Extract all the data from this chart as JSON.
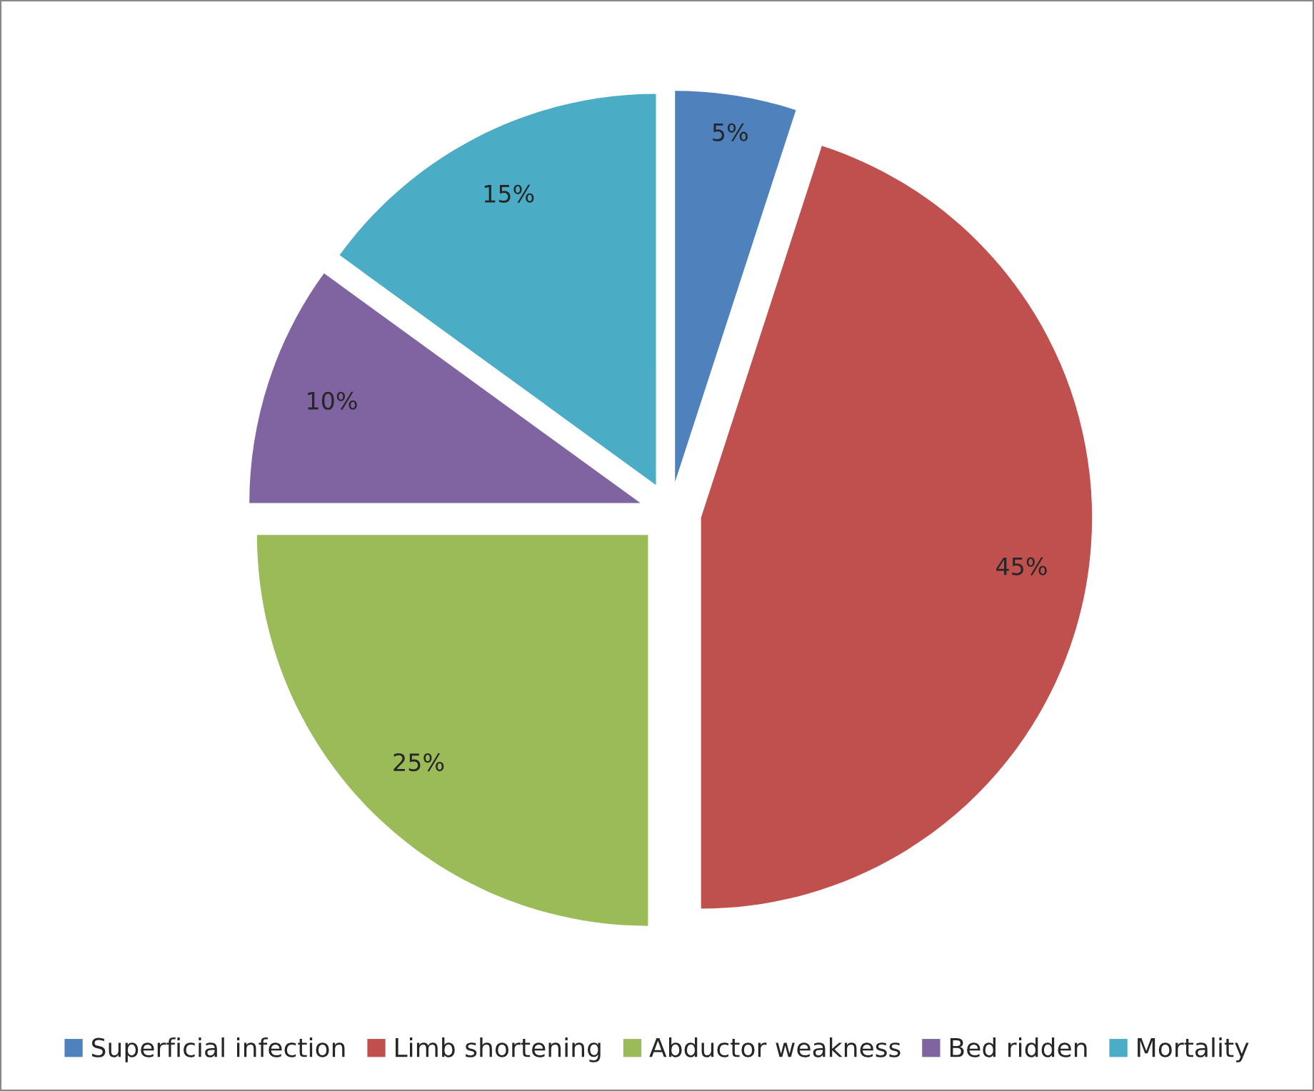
{
  "chart_data": {
    "type": "pie",
    "categories": [
      "Superficial infection",
      "Limb shortening",
      "Abductor weakness",
      "Bed ridden",
      "Mortality"
    ],
    "values": [
      5,
      45,
      25,
      10,
      15
    ],
    "colors": [
      "#4f81bd",
      "#c0504d",
      "#9bbb59",
      "#8064a2",
      "#4bacc6"
    ],
    "value_labels": [
      "5%",
      "45%",
      "25%",
      "10%",
      "15%"
    ],
    "legend": "bottom"
  }
}
